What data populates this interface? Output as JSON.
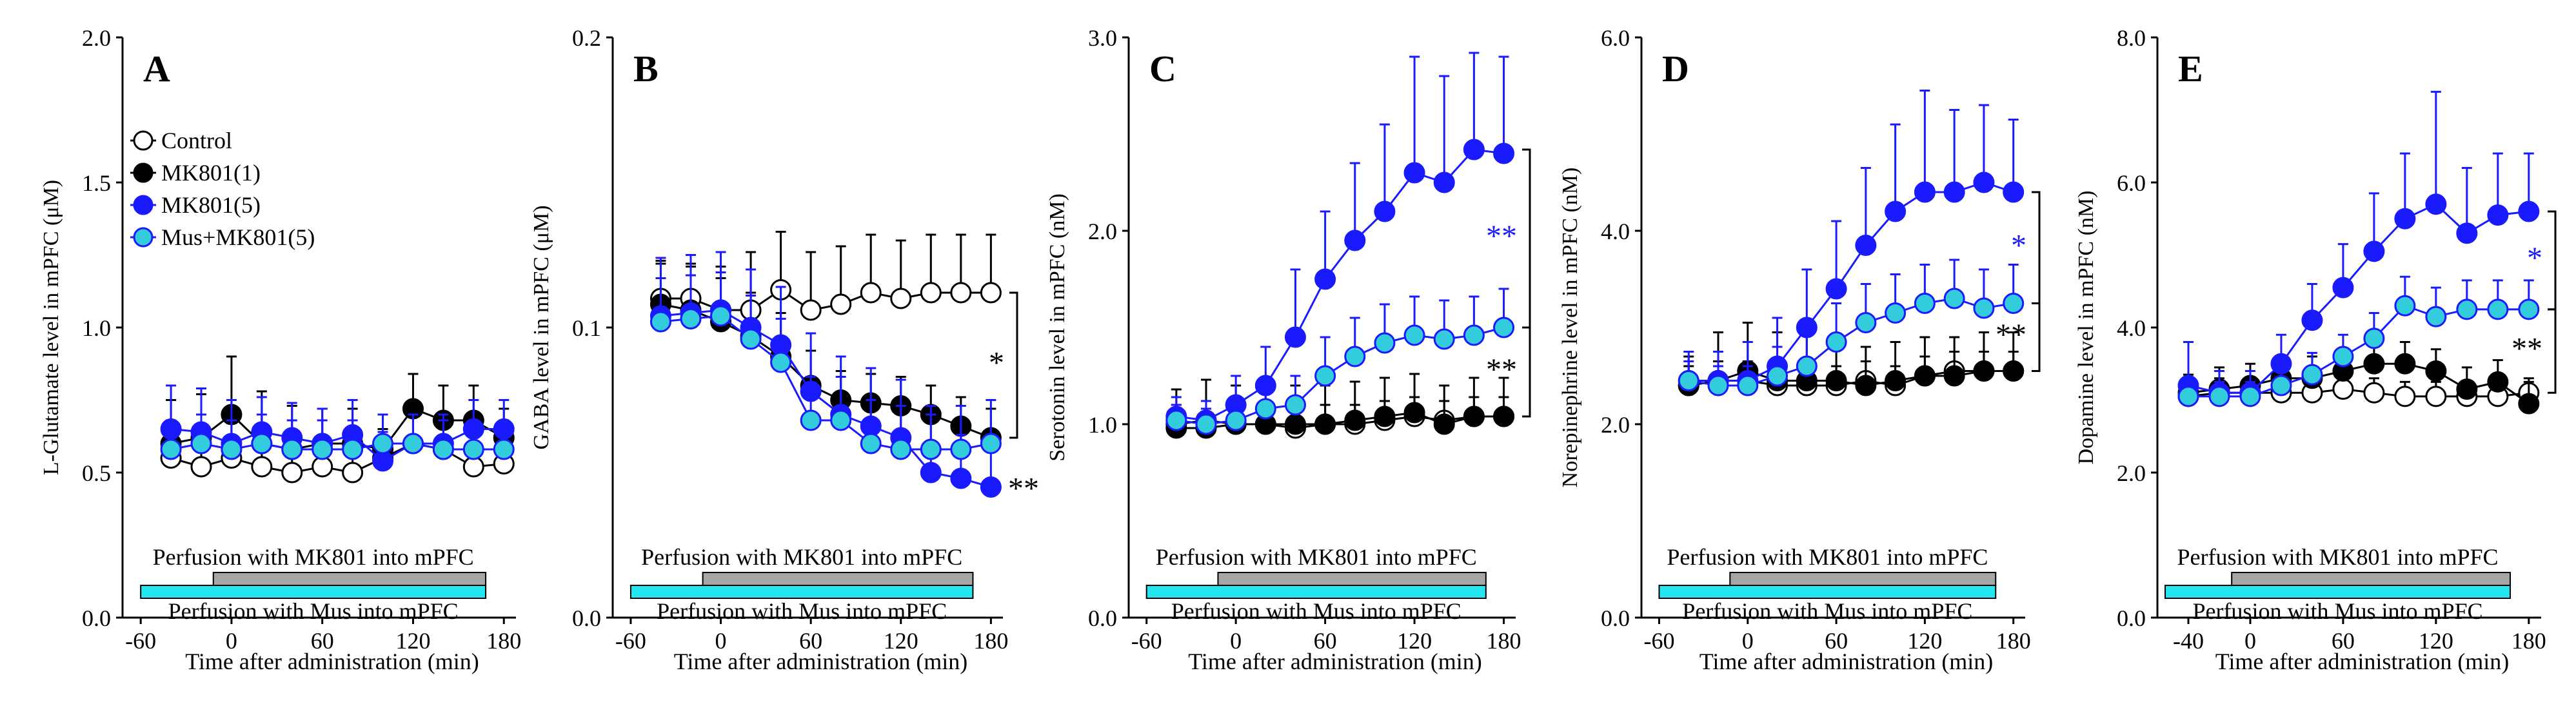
{
  "colors": {
    "control": "#ffffff",
    "mk1": "#000000",
    "mk5": "#1a1aff",
    "mus": "#33ccdd",
    "mk_bar": "#a6a6a6",
    "mus_bar": "#22e6f0",
    "stroke": "#000000"
  },
  "chart_data": [
    {
      "type": "line",
      "panel_label": "A",
      "ylabel": "L-Glutamate level in mPFC (μM)",
      "xlabel": "Time after administration (min)",
      "ylim": [
        0,
        2.0
      ],
      "ytick_labels": [
        "0.0",
        "0.5",
        "1.0",
        "1.5",
        "2.0"
      ],
      "xlim": [
        -72,
        188
      ],
      "xticks": [
        -60,
        0,
        60,
        120,
        180
      ],
      "xtick_labels": [
        "-60",
        "0",
        "60",
        "120",
        "180"
      ],
      "bars": {
        "mk801": {
          "label": "Perfusion with MK801 into mPFC",
          "start": -12,
          "end": 168
        },
        "mus": {
          "label": "Perfusion with Mus into mPFC",
          "start": -60,
          "end": 168
        }
      },
      "legend": [
        "Control",
        "MK801(1)",
        "MK801(5)",
        "Mus+MK801(5)"
      ],
      "significance": [],
      "x": [
        -40,
        -20,
        0,
        20,
        40,
        60,
        80,
        100,
        120,
        140,
        160,
        180
      ],
      "series": [
        {
          "name": "Control",
          "values": [
            0.55,
            0.52,
            0.55,
            0.52,
            0.5,
            0.52,
            0.5,
            0.55,
            0.6,
            0.58,
            0.52,
            0.53
          ],
          "err": [
            0.1,
            0.1,
            0.12,
            0.1,
            0.1,
            0.1,
            0.08,
            0.1,
            0.1,
            0.1,
            0.1,
            0.08
          ]
        },
        {
          "name": "MK801(1)",
          "values": [
            0.6,
            0.62,
            0.7,
            0.6,
            0.58,
            0.6,
            0.6,
            0.58,
            0.72,
            0.68,
            0.68,
            0.62
          ],
          "err": [
            0.15,
            0.15,
            0.2,
            0.18,
            0.15,
            0.12,
            0.12,
            0.12,
            0.12,
            0.12,
            0.12,
            0.1
          ]
        },
        {
          "name": "MK801(5)",
          "values": [
            0.65,
            0.64,
            0.6,
            0.64,
            0.62,
            0.6,
            0.63,
            0.54,
            0.6,
            0.6,
            0.65,
            0.65
          ],
          "err": [
            0.15,
            0.15,
            0.15,
            0.12,
            0.12,
            0.12,
            0.12,
            0.1,
            0.1,
            0.1,
            0.1,
            0.1
          ]
        },
        {
          "name": "Mus+MK801(5)",
          "values": [
            0.58,
            0.6,
            0.58,
            0.6,
            0.58,
            0.58,
            0.58,
            0.6,
            0.6,
            0.58,
            0.58,
            0.58
          ],
          "err": [
            0.1,
            0.1,
            0.1,
            0.1,
            0.1,
            0.1,
            0.1,
            0.1,
            0.1,
            0.1,
            0.1,
            0.1
          ]
        }
      ]
    },
    {
      "type": "line",
      "panel_label": "B",
      "ylabel": "GABA level in mPFC (μM)",
      "xlabel": "Time after administration (min)",
      "ylim": [
        0,
        0.2
      ],
      "ytick_labels": [
        "0.0",
        "0.1",
        "0.2"
      ],
      "xlim": [
        -72,
        188
      ],
      "xticks": [
        -60,
        0,
        60,
        120,
        180
      ],
      "xtick_labels": [
        "-60",
        "0",
        "60",
        "120",
        "180"
      ],
      "bars": {
        "mk801": {
          "label": "Perfusion with MK801 into mPFC",
          "start": -12,
          "end": 168
        },
        "mus": {
          "label": "Perfusion with Mus into mPFC",
          "start": -60,
          "end": 168
        }
      },
      "significance": [
        {
          "text": "*",
          "color": "#000000",
          "from_y": 0.112,
          "to_y": 0.062
        },
        {
          "text": "**",
          "color": "#000000",
          "from_y": 0.062,
          "to_y": 0.045,
          "label_only": true
        }
      ],
      "x": [
        -40,
        -20,
        0,
        20,
        40,
        60,
        80,
        100,
        120,
        140,
        160,
        180
      ],
      "series": [
        {
          "name": "Control",
          "values": [
            0.11,
            0.11,
            0.106,
            0.106,
            0.113,
            0.106,
            0.108,
            0.112,
            0.11,
            0.112,
            0.112,
            0.112
          ],
          "err": [
            0.012,
            0.012,
            0.015,
            0.02,
            0.02,
            0.02,
            0.02,
            0.02,
            0.02,
            0.02,
            0.02,
            0.02
          ]
        },
        {
          "name": "MK801(1)",
          "values": [
            0.108,
            0.106,
            0.102,
            0.097,
            0.09,
            0.08,
            0.075,
            0.074,
            0.073,
            0.07,
            0.066,
            0.062
          ],
          "err": [
            0.015,
            0.015,
            0.015,
            0.015,
            0.015,
            0.012,
            0.01,
            0.01,
            0.01,
            0.01,
            0.01,
            0.01
          ]
        },
        {
          "name": "MK801(5)",
          "values": [
            0.104,
            0.105,
            0.106,
            0.1,
            0.094,
            0.078,
            0.07,
            0.066,
            0.062,
            0.05,
            0.048,
            0.045
          ],
          "err": [
            0.02,
            0.02,
            0.02,
            0.02,
            0.02,
            0.02,
            0.02,
            0.02,
            0.02,
            0.02,
            0.015,
            0.015
          ]
        },
        {
          "name": "Mus+MK801(5)",
          "values": [
            0.102,
            0.103,
            0.104,
            0.096,
            0.088,
            0.068,
            0.068,
            0.06,
            0.058,
            0.058,
            0.058,
            0.06
          ],
          "err": [
            0.015,
            0.015,
            0.015,
            0.015,
            0.015,
            0.015,
            0.015,
            0.015,
            0.015,
            0.015,
            0.015,
            0.015
          ]
        }
      ]
    },
    {
      "type": "line",
      "panel_label": "C",
      "ylabel": "Serotonin level in mPFC (nM)",
      "xlabel": "Time after administration (min)",
      "ylim": [
        0,
        3.0
      ],
      "ytick_labels": [
        "0.0",
        "1.0",
        "2.0",
        "3.0"
      ],
      "xlim": [
        -72,
        188
      ],
      "xticks": [
        -60,
        0,
        60,
        120,
        180
      ],
      "xtick_labels": [
        "-60",
        "0",
        "60",
        "120",
        "180"
      ],
      "bars": {
        "mk801": {
          "label": "Perfusion with MK801 into mPFC",
          "start": -12,
          "end": 168
        },
        "mus": {
          "label": "Perfusion with Mus into mPFC",
          "start": -60,
          "end": 168
        }
      },
      "significance": [
        {
          "text": "**",
          "color": "#1a1aff",
          "from_y": 2.42,
          "to_y": 1.5
        },
        {
          "text": "**",
          "color": "#000000",
          "from_y": 1.5,
          "to_y": 1.04
        }
      ],
      "x": [
        -40,
        -20,
        0,
        20,
        40,
        60,
        80,
        100,
        120,
        140,
        160,
        180
      ],
      "series": [
        {
          "name": "Control",
          "values": [
            1.0,
            1.02,
            1.0,
            1.0,
            0.98,
            1.0,
            1.0,
            1.02,
            1.04,
            1.02,
            1.04,
            1.04
          ],
          "err": [
            0.1,
            0.1,
            0.1,
            0.1,
            0.1,
            0.1,
            0.1,
            0.1,
            0.1,
            0.1,
            0.1,
            0.1
          ]
        },
        {
          "name": "MK801(1)",
          "values": [
            0.98,
            0.98,
            1.0,
            1.0,
            1.0,
            1.0,
            1.02,
            1.04,
            1.06,
            1.0,
            1.04,
            1.04
          ],
          "err": [
            0.2,
            0.25,
            0.2,
            0.2,
            0.2,
            0.2,
            0.2,
            0.2,
            0.2,
            0.2,
            0.2,
            0.2
          ]
        },
        {
          "name": "MK801(5)",
          "values": [
            1.04,
            1.02,
            1.1,
            1.2,
            1.45,
            1.75,
            1.95,
            2.1,
            2.3,
            2.25,
            2.42,
            2.4
          ],
          "err": [
            0.1,
            0.1,
            0.15,
            0.2,
            0.35,
            0.35,
            0.4,
            0.45,
            0.6,
            0.55,
            0.5,
            0.5
          ]
        },
        {
          "name": "Mus+MK801(5)",
          "values": [
            1.02,
            1.0,
            1.02,
            1.08,
            1.1,
            1.25,
            1.35,
            1.42,
            1.46,
            1.44,
            1.46,
            1.5
          ],
          "err": [
            0.08,
            0.08,
            0.1,
            0.1,
            0.15,
            0.2,
            0.2,
            0.2,
            0.2,
            0.2,
            0.2,
            0.2
          ]
        }
      ]
    },
    {
      "type": "line",
      "panel_label": "D",
      "ylabel": "Norepinephrine level in mPFC (nM)",
      "xlabel": "Time after administration (min)",
      "ylim": [
        0,
        6.0
      ],
      "ytick_labels": [
        "0.0",
        "2.0",
        "4.0",
        "6.0"
      ],
      "xlim": [
        -72,
        188
      ],
      "xticks": [
        -60,
        0,
        60,
        120,
        180
      ],
      "xtick_labels": [
        "-60",
        "0",
        "60",
        "120",
        "180"
      ],
      "bars": {
        "mk801": {
          "label": "Perfusion with MK801 into mPFC",
          "start": -12,
          "end": 168
        },
        "mus": {
          "label": "Perfusion with Mus into mPFC",
          "start": -60,
          "end": 168
        }
      },
      "significance": [
        {
          "text": "*",
          "color": "#1a1aff",
          "from_y": 4.4,
          "to_y": 3.25
        },
        {
          "text": "**",
          "color": "#000000",
          "from_y": 3.25,
          "to_y": 2.55
        }
      ],
      "x": [
        -40,
        -20,
        0,
        20,
        40,
        60,
        80,
        100,
        120,
        140,
        160,
        180
      ],
      "series": [
        {
          "name": "Control",
          "values": [
            2.4,
            2.45,
            2.45,
            2.4,
            2.4,
            2.4,
            2.45,
            2.4,
            2.5,
            2.55,
            2.55,
            2.55
          ],
          "err": [
            0.2,
            0.2,
            0.2,
            0.2,
            0.2,
            0.2,
            0.2,
            0.2,
            0.2,
            0.2,
            0.2,
            0.2
          ]
        },
        {
          "name": "MK801(1)",
          "values": [
            2.4,
            2.45,
            2.55,
            2.45,
            2.45,
            2.45,
            2.4,
            2.45,
            2.5,
            2.5,
            2.55,
            2.55
          ],
          "err": [
            0.3,
            0.5,
            0.5,
            0.5,
            0.5,
            0.4,
            0.4,
            0.4,
            0.4,
            0.4,
            0.4,
            0.4
          ]
        },
        {
          "name": "MK801(5)",
          "values": [
            2.45,
            2.45,
            2.45,
            2.6,
            3.0,
            3.4,
            3.85,
            4.2,
            4.4,
            4.4,
            4.5,
            4.4
          ],
          "err": [
            0.3,
            0.3,
            0.4,
            0.5,
            0.6,
            0.7,
            0.8,
            0.9,
            1.05,
            0.85,
            0.8,
            0.75
          ]
        },
        {
          "name": "Mus+MK801(5)",
          "values": [
            2.45,
            2.4,
            2.4,
            2.5,
            2.6,
            2.85,
            3.05,
            3.15,
            3.25,
            3.3,
            3.2,
            3.25
          ],
          "err": [
            0.2,
            0.2,
            0.2,
            0.3,
            0.35,
            0.4,
            0.4,
            0.4,
            0.4,
            0.4,
            0.4,
            0.4
          ]
        }
      ]
    },
    {
      "type": "line",
      "panel_label": "E",
      "ylabel": "Dopamine level in mPFC (nM)",
      "xlabel": "Time after administration (min)",
      "ylim": [
        0,
        8.0
      ],
      "ytick_labels": [
        "0.0",
        "2.0",
        "4.0",
        "6.0",
        "8.0"
      ],
      "xlim": [
        -60,
        188
      ],
      "xticks": [
        -40,
        0,
        60,
        120,
        180
      ],
      "xtick_labels": [
        "-40",
        "0",
        "60",
        "120",
        "180"
      ],
      "bars": {
        "mk801": {
          "label": "Perfusion with MK801 into mPFC",
          "start": -12,
          "end": 168
        },
        "mus": {
          "label": "Perfusion with Mus into mPFC",
          "start": -55,
          "end": 168
        }
      },
      "significance": [
        {
          "text": "*",
          "color": "#1a1aff",
          "from_y": 5.6,
          "to_y": 4.25
        },
        {
          "text": "**",
          "color": "#000000",
          "from_y": 4.25,
          "to_y": 3.1
        }
      ],
      "x": [
        -40,
        -20,
        0,
        20,
        40,
        60,
        80,
        100,
        120,
        140,
        160,
        180
      ],
      "series": [
        {
          "name": "Control",
          "values": [
            3.05,
            3.1,
            3.1,
            3.1,
            3.1,
            3.15,
            3.1,
            3.05,
            3.05,
            3.05,
            3.05,
            3.1
          ],
          "err": [
            0.2,
            0.2,
            0.2,
            0.2,
            0.2,
            0.2,
            0.2,
            0.2,
            0.2,
            0.2,
            0.2,
            0.2
          ]
        },
        {
          "name": "MK801(1)",
          "values": [
            3.1,
            3.15,
            3.2,
            3.3,
            3.3,
            3.4,
            3.5,
            3.5,
            3.4,
            3.15,
            3.25,
            2.95
          ],
          "err": [
            0.25,
            0.3,
            0.3,
            0.3,
            0.3,
            0.3,
            0.3,
            0.3,
            0.3,
            0.3,
            0.3,
            0.3
          ]
        },
        {
          "name": "MK801(5)",
          "values": [
            3.2,
            3.1,
            3.1,
            3.5,
            4.1,
            4.55,
            5.05,
            5.5,
            5.7,
            5.3,
            5.55,
            5.6
          ],
          "err": [
            0.6,
            0.3,
            0.3,
            0.4,
            0.5,
            0.6,
            0.8,
            0.9,
            1.55,
            0.9,
            0.85,
            0.8
          ]
        },
        {
          "name": "Mus+MK801(5)",
          "values": [
            3.05,
            3.05,
            3.05,
            3.2,
            3.35,
            3.6,
            3.85,
            4.3,
            4.15,
            4.25,
            4.25,
            4.25
          ],
          "err": [
            0.2,
            0.2,
            0.2,
            0.2,
            0.3,
            0.3,
            0.35,
            0.4,
            0.4,
            0.4,
            0.4,
            0.4
          ]
        }
      ]
    }
  ]
}
